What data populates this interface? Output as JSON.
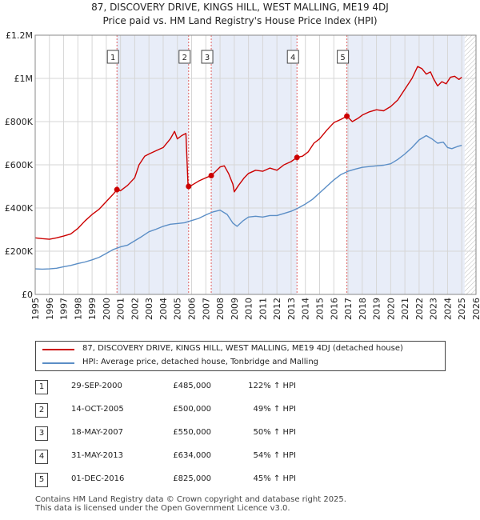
{
  "chart_data": {
    "type": "line",
    "title": "87, DISCOVERY DRIVE, KINGS HILL, WEST MALLING, ME19 4DJ",
    "subtitle": "Price paid vs. HM Land Registry's House Price Index (HPI)",
    "xlim": [
      1995,
      2026
    ],
    "ylim": [
      0,
      1200000
    ],
    "x_ticks": [
      "1995",
      "1996",
      "1997",
      "1998",
      "1999",
      "2000",
      "2001",
      "2002",
      "2003",
      "2004",
      "2005",
      "2006",
      "2007",
      "2008",
      "2009",
      "2010",
      "2011",
      "2012",
      "2013",
      "2014",
      "2015",
      "2016",
      "2017",
      "2018",
      "2019",
      "2020",
      "2021",
      "2022",
      "2023",
      "2024",
      "2025",
      "2026"
    ],
    "y_ticks": [
      {
        "value": 0,
        "label": "£0"
      },
      {
        "value": 200000,
        "label": "£200K"
      },
      {
        "value": 400000,
        "label": "£400K"
      },
      {
        "value": 600000,
        "label": "£600K"
      },
      {
        "value": 800000,
        "label": "£800K"
      },
      {
        "value": 1000000,
        "label": "£1M"
      },
      {
        "value": 1200000,
        "label": "£1.2M"
      }
    ],
    "grid": true,
    "future_hatch_from": 2025.2,
    "series": [
      {
        "name": "87, DISCOVERY DRIVE, KINGS HILL, WEST MALLING, ME19 4DJ (detached house)",
        "color": "#cc0000",
        "points": [
          [
            1995.0,
            262000
          ],
          [
            1995.5,
            258000
          ],
          [
            1996.0,
            255000
          ],
          [
            1996.5,
            262000
          ],
          [
            1997.0,
            270000
          ],
          [
            1997.5,
            280000
          ],
          [
            1998.0,
            305000
          ],
          [
            1998.5,
            340000
          ],
          [
            1999.0,
            370000
          ],
          [
            1999.5,
            395000
          ],
          [
            2000.0,
            430000
          ],
          [
            2000.5,
            465000
          ],
          [
            2000.75,
            485000
          ],
          [
            2001.0,
            480000
          ],
          [
            2001.5,
            505000
          ],
          [
            2002.0,
            540000
          ],
          [
            2002.3,
            600000
          ],
          [
            2002.7,
            640000
          ],
          [
            2003.0,
            650000
          ],
          [
            2003.5,
            665000
          ],
          [
            2004.0,
            680000
          ],
          [
            2004.5,
            720000
          ],
          [
            2004.8,
            755000
          ],
          [
            2005.0,
            720000
          ],
          [
            2005.3,
            735000
          ],
          [
            2005.6,
            745000
          ],
          [
            2005.75,
            500000
          ],
          [
            2006.0,
            505000
          ],
          [
            2006.5,
            525000
          ],
          [
            2007.0,
            540000
          ],
          [
            2007.38,
            550000
          ],
          [
            2007.7,
            570000
          ],
          [
            2008.0,
            590000
          ],
          [
            2008.3,
            595000
          ],
          [
            2008.6,
            560000
          ],
          [
            2008.9,
            510000
          ],
          [
            2009.0,
            475000
          ],
          [
            2009.3,
            505000
          ],
          [
            2009.7,
            540000
          ],
          [
            2010.0,
            560000
          ],
          [
            2010.5,
            575000
          ],
          [
            2011.0,
            570000
          ],
          [
            2011.5,
            585000
          ],
          [
            2012.0,
            575000
          ],
          [
            2012.5,
            600000
          ],
          [
            2013.0,
            615000
          ],
          [
            2013.41,
            634000
          ],
          [
            2013.8,
            640000
          ],
          [
            2014.2,
            660000
          ],
          [
            2014.6,
            700000
          ],
          [
            2015.0,
            720000
          ],
          [
            2015.5,
            760000
          ],
          [
            2016.0,
            795000
          ],
          [
            2016.5,
            810000
          ],
          [
            2016.92,
            825000
          ],
          [
            2017.3,
            800000
          ],
          [
            2017.7,
            815000
          ],
          [
            2018.0,
            830000
          ],
          [
            2018.5,
            845000
          ],
          [
            2019.0,
            855000
          ],
          [
            2019.5,
            850000
          ],
          [
            2020.0,
            870000
          ],
          [
            2020.5,
            900000
          ],
          [
            2021.0,
            950000
          ],
          [
            2021.5,
            1000000
          ],
          [
            2021.9,
            1055000
          ],
          [
            2022.2,
            1045000
          ],
          [
            2022.5,
            1020000
          ],
          [
            2022.8,
            1030000
          ],
          [
            2023.0,
            1000000
          ],
          [
            2023.3,
            965000
          ],
          [
            2023.6,
            985000
          ],
          [
            2023.9,
            975000
          ],
          [
            2024.2,
            1005000
          ],
          [
            2024.5,
            1010000
          ],
          [
            2024.8,
            995000
          ],
          [
            2025.0,
            1005000
          ]
        ]
      },
      {
        "name": "HPI: Average price, detached house, Tonbridge and Malling",
        "color": "#5b8ec6",
        "points": [
          [
            1995.0,
            118000
          ],
          [
            1995.5,
            117000
          ],
          [
            1996.0,
            118000
          ],
          [
            1996.5,
            121000
          ],
          [
            1997.0,
            128000
          ],
          [
            1997.5,
            134000
          ],
          [
            1998.0,
            143000
          ],
          [
            1998.5,
            150000
          ],
          [
            1999.0,
            160000
          ],
          [
            1999.5,
            172000
          ],
          [
            2000.0,
            190000
          ],
          [
            2000.5,
            208000
          ],
          [
            2001.0,
            220000
          ],
          [
            2001.5,
            228000
          ],
          [
            2002.0,
            248000
          ],
          [
            2002.5,
            268000
          ],
          [
            2003.0,
            290000
          ],
          [
            2003.5,
            302000
          ],
          [
            2004.0,
            315000
          ],
          [
            2004.5,
            325000
          ],
          [
            2005.0,
            328000
          ],
          [
            2005.5,
            332000
          ],
          [
            2006.0,
            342000
          ],
          [
            2006.5,
            352000
          ],
          [
            2007.0,
            368000
          ],
          [
            2007.5,
            382000
          ],
          [
            2008.0,
            390000
          ],
          [
            2008.5,
            370000
          ],
          [
            2008.9,
            330000
          ],
          [
            2009.2,
            315000
          ],
          [
            2009.6,
            340000
          ],
          [
            2010.0,
            358000
          ],
          [
            2010.5,
            362000
          ],
          [
            2011.0,
            358000
          ],
          [
            2011.5,
            365000
          ],
          [
            2012.0,
            365000
          ],
          [
            2012.5,
            375000
          ],
          [
            2013.0,
            385000
          ],
          [
            2013.5,
            400000
          ],
          [
            2014.0,
            418000
          ],
          [
            2014.5,
            440000
          ],
          [
            2015.0,
            470000
          ],
          [
            2015.5,
            500000
          ],
          [
            2016.0,
            530000
          ],
          [
            2016.5,
            555000
          ],
          [
            2017.0,
            570000
          ],
          [
            2017.5,
            580000
          ],
          [
            2018.0,
            588000
          ],
          [
            2018.5,
            592000
          ],
          [
            2019.0,
            595000
          ],
          [
            2019.5,
            598000
          ],
          [
            2020.0,
            605000
          ],
          [
            2020.5,
            625000
          ],
          [
            2021.0,
            650000
          ],
          [
            2021.5,
            680000
          ],
          [
            2022.0,
            715000
          ],
          [
            2022.5,
            735000
          ],
          [
            2022.9,
            720000
          ],
          [
            2023.3,
            700000
          ],
          [
            2023.7,
            705000
          ],
          [
            2024.0,
            680000
          ],
          [
            2024.3,
            675000
          ],
          [
            2024.7,
            685000
          ],
          [
            2025.0,
            690000
          ]
        ]
      }
    ],
    "sales": [
      {
        "id": "1",
        "x": 2000.75,
        "price": 485000
      },
      {
        "id": "2",
        "x": 2005.79,
        "price": 500000
      },
      {
        "id": "3",
        "x": 2007.38,
        "price": 550000
      },
      {
        "id": "4",
        "x": 2013.41,
        "price": 634000
      },
      {
        "id": "5",
        "x": 2016.92,
        "price": 825000
      }
    ],
    "shaded_spans": [
      [
        2000.75,
        2005.79
      ],
      [
        2007.38,
        2013.41
      ],
      [
        2016.92,
        2025.2
      ]
    ]
  },
  "legend": {
    "property_label": "87, DISCOVERY DRIVE, KINGS HILL, WEST MALLING, ME19 4DJ (detached house)",
    "hpi_label": "HPI: Average price, detached house, Tonbridge and Malling",
    "property_color": "#cc0000",
    "hpi_color": "#5b8ec6"
  },
  "transactions": [
    {
      "num": "1",
      "date": "29-SEP-2000",
      "price": "£485,000",
      "hpi": "122% ↑ HPI"
    },
    {
      "num": "2",
      "date": "14-OCT-2005",
      "price": "£500,000",
      "hpi": "49% ↑ HPI"
    },
    {
      "num": "3",
      "date": "18-MAY-2007",
      "price": "£550,000",
      "hpi": "50% ↑ HPI"
    },
    {
      "num": "4",
      "date": "31-MAY-2013",
      "price": "£634,000",
      "hpi": "54% ↑ HPI"
    },
    {
      "num": "5",
      "date": "01-DEC-2016",
      "price": "£825,000",
      "hpi": "45% ↑ HPI"
    }
  ],
  "footer": {
    "line1": "Contains HM Land Registry data © Crown copyright and database right 2025.",
    "line2": "This data is licensed under the Open Government Licence v3.0."
  }
}
